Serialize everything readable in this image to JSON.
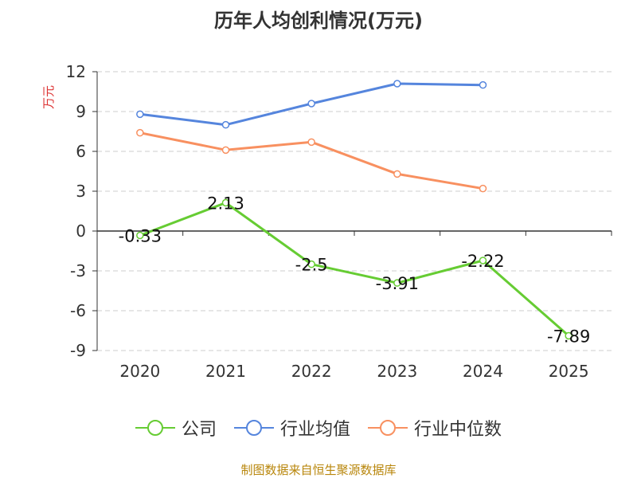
{
  "chart_data": {
    "type": "line",
    "title": "历年人均创利情况(万元)",
    "ylabel": "万元",
    "xlabel": "",
    "categories": [
      "2020",
      "2021",
      "2022",
      "2023",
      "2024",
      "2025"
    ],
    "yticks": [
      "12",
      "9",
      "6",
      "3",
      "0",
      "-3",
      "-6",
      "-9"
    ],
    "ylim": [
      -9,
      12
    ],
    "grid": true,
    "legend_position": "bottom",
    "series": [
      {
        "name": "公司",
        "color": "#66cc33",
        "values": [
          -0.33,
          2.13,
          -2.5,
          -3.91,
          -2.22,
          -7.89
        ],
        "labels": [
          "-0.33",
          "2.13",
          "-2.5",
          "-3.91",
          "-2.22",
          "-7.89"
        ]
      },
      {
        "name": "行业均值",
        "color": "#5585dd",
        "values": [
          8.8,
          8.0,
          9.6,
          11.1,
          11.0,
          null
        ]
      },
      {
        "name": "行业中位数",
        "color": "#f89060",
        "values": [
          7.4,
          6.1,
          6.7,
          4.3,
          3.2,
          null
        ]
      }
    ]
  },
  "source_note": "制图数据来自恒生聚源数据库"
}
